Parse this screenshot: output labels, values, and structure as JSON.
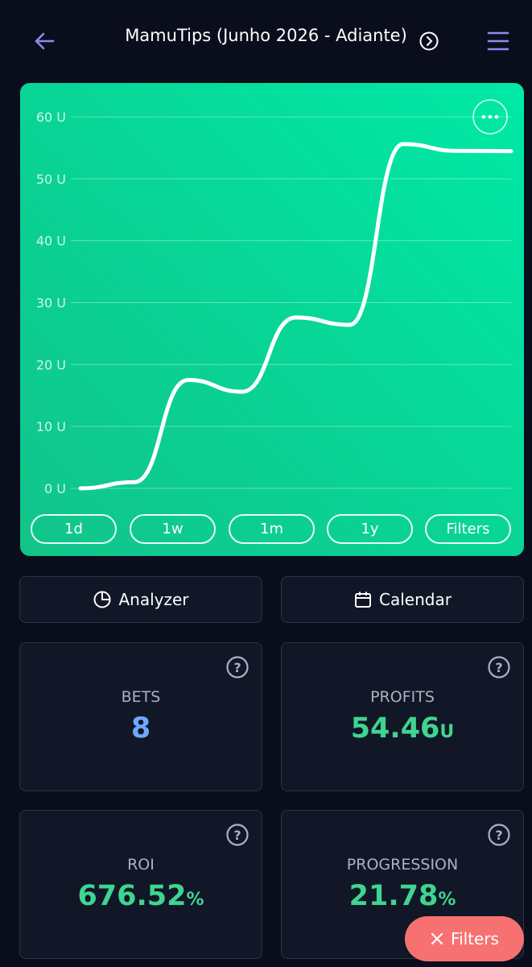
{
  "header": {
    "title": "MamuTips (Junho 2026 - Adiante)"
  },
  "chart_data": {
    "type": "line",
    "color": "#ffffff",
    "series": [
      {
        "values": [
          0,
          1,
          17.5,
          15.6,
          27.6,
          26.4,
          55.6,
          54.5,
          54.46
        ]
      }
    ],
    "ylim": [
      0,
      60
    ],
    "yticks": [
      {
        "value": 0,
        "label": "0 U"
      },
      {
        "value": 10,
        "label": "10 U"
      },
      {
        "value": 20,
        "label": "20 U"
      },
      {
        "value": 30,
        "label": "30 U"
      },
      {
        "value": 40,
        "label": "40 U"
      },
      {
        "value": 50,
        "label": "50 U"
      },
      {
        "value": 60,
        "label": "60 U"
      }
    ],
    "grid": true
  },
  "ranges": [
    "1d",
    "1w",
    "1m",
    "1y",
    "Filters"
  ],
  "tools": [
    "Analyzer",
    "Calendar"
  ],
  "stats": [
    {
      "label": "BETS",
      "value": "8",
      "unit": null
    },
    {
      "label": "PROFITS",
      "value": "54.46",
      "unit": "U"
    },
    {
      "label": "ROI",
      "value": "676.52",
      "unit": "%"
    },
    {
      "label": "PROGRESSION",
      "value": "21.78",
      "unit": "%"
    }
  ],
  "fab": {
    "label": "Filters"
  }
}
